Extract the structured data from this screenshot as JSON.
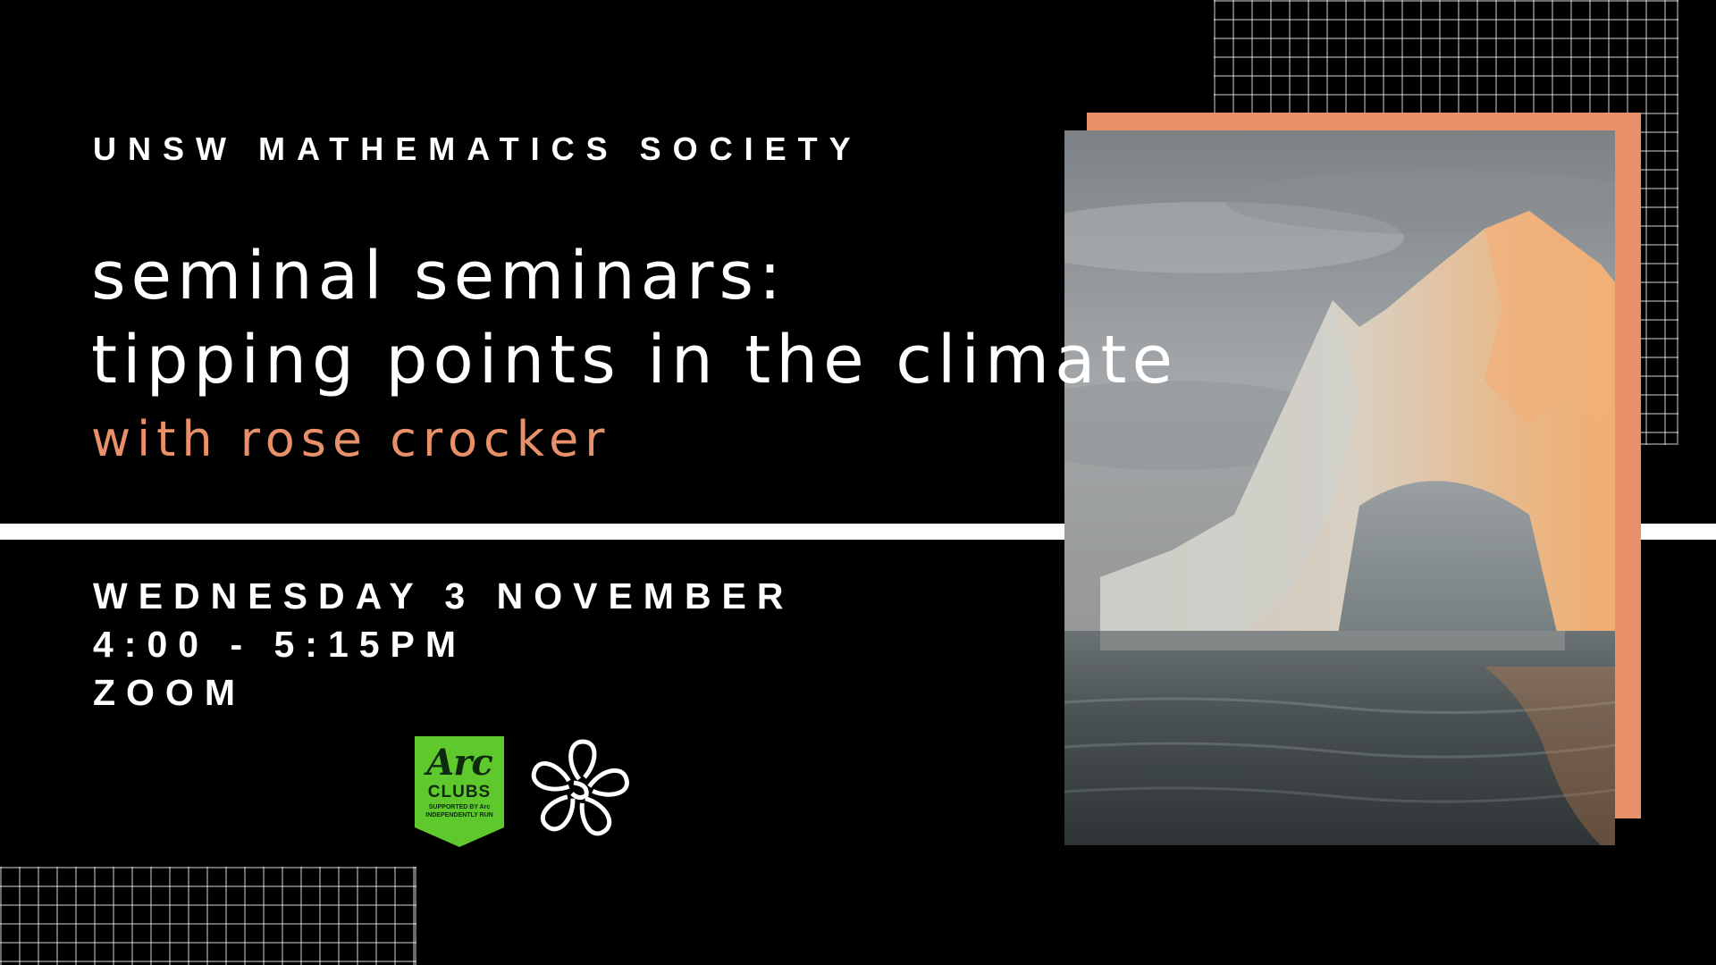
{
  "event": {
    "organization": "UNSW MATHEMATICS SOCIETY",
    "title_line1": "seminal seminars:",
    "title_line2": "tipping points in the climate",
    "speaker": "with rose crocker",
    "date": "WEDNESDAY 3 NOVEMBER",
    "time": "4:00 - 5:15PM",
    "location": "ZOOM"
  },
  "logos": {
    "arc_script": "Arc",
    "arc_clubs": "CLUBS",
    "arc_line1": "SUPPORTED BY Arc",
    "arc_line2": "INDEPENDENTLY RUN"
  },
  "colors": {
    "background": "#000000",
    "text": "#ffffff",
    "accent": "#e8906a",
    "arc_green": "#5fc82c"
  },
  "image": {
    "subject": "iceberg-at-sunset-photo"
  }
}
